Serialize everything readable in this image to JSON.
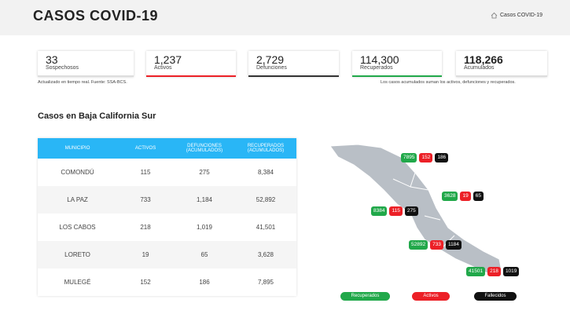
{
  "header": {
    "title": "CASOS COVID-19",
    "breadcrumb": "Casos COVID-19"
  },
  "stats": [
    {
      "value": "33",
      "label": "Sospechosos"
    },
    {
      "value": "1,237",
      "label": "Activos"
    },
    {
      "value": "2,729",
      "label": "Defunciones"
    },
    {
      "value": "114,300",
      "label": "Recuperados"
    },
    {
      "value": "118,266",
      "label": "Acumulados"
    }
  ],
  "notes": {
    "source": "Actualizado en tiempo real. Fuente: SSA-BCS.",
    "accumulated": "Los casos acumulados suman los activos, defunciones y recuperados."
  },
  "section_title": "Casos en Baja California Sur",
  "table": {
    "headers": [
      "MUNICIPIO",
      "ACTIVOS",
      "DEFUNCIONES (ACUMULADOS)",
      "RECUPERADOS (ACUMULADOS)"
    ],
    "rows": [
      [
        "COMONDÚ",
        "115",
        "275",
        "8,384"
      ],
      [
        "LA PAZ",
        "733",
        "1,184",
        "52,892"
      ],
      [
        "LOS CABOS",
        "218",
        "1,019",
        "41,501"
      ],
      [
        "LORETO",
        "19",
        "65",
        "3,628"
      ],
      [
        "MULEGÉ",
        "152",
        "186",
        "7,895"
      ]
    ]
  },
  "map": {
    "regions": [
      [
        "7895",
        "152",
        "186"
      ],
      [
        "3628",
        "19",
        "65"
      ],
      [
        "8384",
        "115",
        "275"
      ],
      [
        "52892",
        "733",
        "1184"
      ],
      [
        "41501",
        "218",
        "1019"
      ]
    ],
    "legend": [
      "Recuperados",
      "Activos",
      "Fallecidos"
    ]
  }
}
